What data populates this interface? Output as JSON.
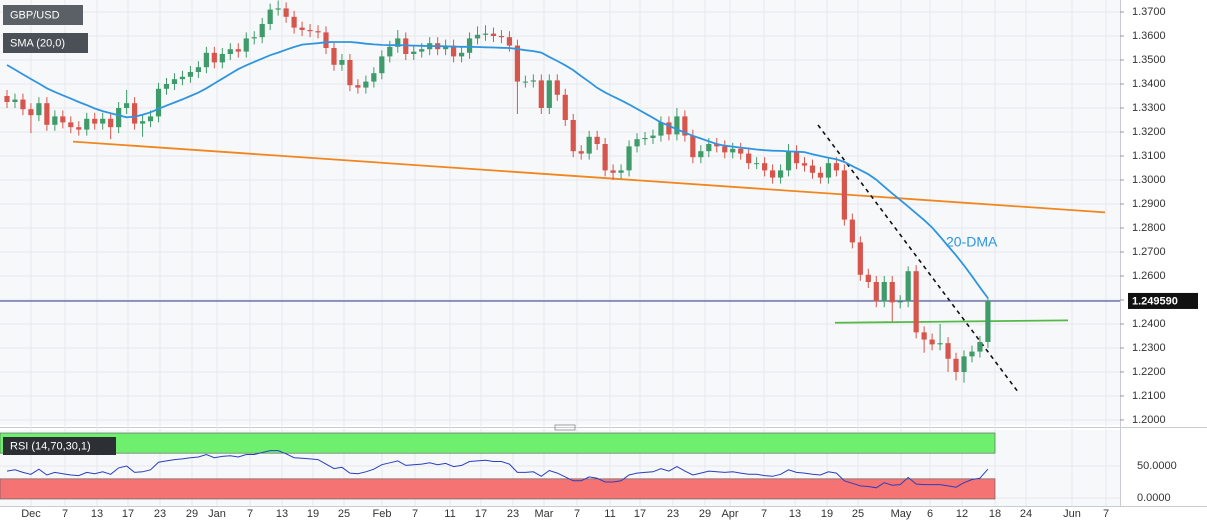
{
  "chart_data": {
    "type": "candlestick",
    "symbol": "GBP/USD",
    "up_color": "#3f9b6a",
    "down_color": "#d6554d",
    "open": [
      1.335,
      1.3325,
      1.3335,
      1.3295,
      1.327,
      1.332,
      1.323,
      1.3265,
      1.324,
      1.322,
      1.321,
      1.3255,
      1.3235,
      1.3255,
      1.322,
      1.33,
      1.332,
      1.3235,
      1.3245,
      1.3265,
      1.338,
      1.34,
      1.342,
      1.343,
      1.345,
      1.347,
      1.353,
      1.349,
      1.3525,
      1.3545,
      1.3535,
      1.359,
      1.3595,
      1.365,
      1.371,
      1.3715,
      1.368,
      1.3635,
      1.3625,
      1.362,
      1.3615,
      1.355,
      1.348,
      1.35,
      1.3395,
      1.3385,
      1.341,
      1.3445,
      1.3515,
      1.3555,
      1.359,
      1.3525,
      1.3535,
      1.3545,
      1.357,
      1.3545,
      1.356,
      1.3515,
      1.353,
      1.359,
      1.3605,
      1.361,
      1.36,
      1.3595,
      1.356,
      1.341,
      1.341,
      1.3415,
      1.33,
      1.3415,
      1.3355,
      1.325,
      1.312,
      1.311,
      1.318,
      1.315,
      1.304,
      1.303,
      1.304,
      1.314,
      1.317,
      1.3175,
      1.3185,
      1.324,
      1.319,
      1.3265,
      1.3185,
      1.3095,
      1.312,
      1.315,
      1.314,
      1.3115,
      1.313,
      1.311,
      1.307,
      1.307,
      1.304,
      1.301,
      1.304,
      1.312,
      1.307,
      1.306,
      1.303,
      1.301,
      1.307,
      1.304,
      1.2835,
      1.274,
      1.2605,
      1.2575,
      1.2495,
      1.2575,
      1.249,
      1.2495,
      1.262,
      1.2365,
      1.2335,
      1.2315,
      1.232,
      1.2255,
      1.22,
      1.2265,
      1.2285,
      1.2325
    ],
    "high": [
      1.3375,
      1.336,
      1.336,
      1.332,
      1.3345,
      1.3345,
      1.329,
      1.329,
      1.3265,
      1.3245,
      1.328,
      1.328,
      1.328,
      1.328,
      1.3325,
      1.3375,
      1.3345,
      1.327,
      1.329,
      1.3405,
      1.3425,
      1.3445,
      1.3455,
      1.3475,
      1.3495,
      1.3555,
      1.3555,
      1.355,
      1.357,
      1.357,
      1.3615,
      1.362,
      1.3675,
      1.3735,
      1.3748,
      1.374,
      1.3705,
      1.366,
      1.365,
      1.3645,
      1.364,
      1.3575,
      1.3525,
      1.3525,
      1.342,
      1.3435,
      1.347,
      1.354,
      1.358,
      1.3625,
      1.3615,
      1.356,
      1.357,
      1.3595,
      1.3595,
      1.3585,
      1.3585,
      1.3555,
      1.3615,
      1.364,
      1.3645,
      1.3635,
      1.3625,
      1.362,
      1.3585,
      1.3435,
      1.344,
      1.344,
      1.344,
      1.344,
      1.338,
      1.3275,
      1.3145,
      1.3205,
      1.3205,
      1.3175,
      1.3065,
      1.3065,
      1.3165,
      1.3195,
      1.32,
      1.321,
      1.3265,
      1.3265,
      1.33,
      1.329,
      1.321,
      1.3145,
      1.3175,
      1.3175,
      1.3165,
      1.3155,
      1.3155,
      1.3135,
      1.3095,
      1.3095,
      1.3065,
      1.3065,
      1.315,
      1.3145,
      1.3095,
      1.3085,
      1.3055,
      1.3095,
      1.3095,
      1.3065,
      1.286,
      1.2765,
      1.263,
      1.26,
      1.26,
      1.26,
      1.252,
      1.264,
      1.2645,
      1.239,
      1.236,
      1.24,
      1.2345,
      1.228,
      1.229,
      1.231,
      1.235,
      1.251
    ],
    "low": [
      1.33,
      1.33,
      1.327,
      1.3195,
      1.3245,
      1.3205,
      1.3205,
      1.3215,
      1.3195,
      1.3185,
      1.3185,
      1.321,
      1.321,
      1.317,
      1.3195,
      1.3275,
      1.321,
      1.318,
      1.322,
      1.324,
      1.3355,
      1.3375,
      1.3395,
      1.3405,
      1.3425,
      1.3445,
      1.3465,
      1.3465,
      1.35,
      1.351,
      1.351,
      1.3565,
      1.357,
      1.3625,
      1.3685,
      1.3655,
      1.361,
      1.36,
      1.3595,
      1.359,
      1.3525,
      1.3455,
      1.3455,
      1.337,
      1.336,
      1.336,
      1.3385,
      1.342,
      1.349,
      1.353,
      1.35,
      1.35,
      1.351,
      1.352,
      1.352,
      1.352,
      1.349,
      1.349,
      1.3505,
      1.3565,
      1.358,
      1.3575,
      1.357,
      1.3535,
      1.3275,
      1.3385,
      1.3385,
      1.3275,
      1.3275,
      1.333,
      1.3225,
      1.3095,
      1.3085,
      1.3085,
      1.3125,
      1.3015,
      1.3,
      1.3005,
      1.3015,
      1.3115,
      1.3145,
      1.315,
      1.316,
      1.3165,
      1.3165,
      1.316,
      1.307,
      1.307,
      1.3095,
      1.3115,
      1.309,
      1.309,
      1.3085,
      1.3045,
      1.3045,
      1.3015,
      1.2985,
      1.2985,
      1.3015,
      1.3045,
      1.3035,
      1.3005,
      1.2985,
      1.2985,
      1.3015,
      1.281,
      1.2715,
      1.258,
      1.255,
      1.247,
      1.247,
      1.241,
      1.2465,
      1.247,
      1.234,
      1.228,
      1.229,
      1.229,
      1.22,
      1.2165,
      1.2155,
      1.224,
      1.226,
      1.23
    ],
    "close": [
      1.3325,
      1.3335,
      1.3295,
      1.327,
      1.332,
      1.323,
      1.3265,
      1.324,
      1.322,
      1.321,
      1.3255,
      1.3235,
      1.3255,
      1.322,
      1.33,
      1.332,
      1.3235,
      1.3245,
      1.3265,
      1.338,
      1.34,
      1.342,
      1.343,
      1.345,
      1.347,
      1.353,
      1.349,
      1.3525,
      1.3545,
      1.3535,
      1.359,
      1.3595,
      1.365,
      1.371,
      1.3715,
      1.368,
      1.3635,
      1.3625,
      1.362,
      1.3615,
      1.355,
      1.348,
      1.35,
      1.3395,
      1.3385,
      1.341,
      1.3445,
      1.3515,
      1.3555,
      1.359,
      1.3525,
      1.3535,
      1.3545,
      1.357,
      1.3545,
      1.356,
      1.3515,
      1.353,
      1.359,
      1.3605,
      1.361,
      1.36,
      1.3595,
      1.356,
      1.341,
      1.341,
      1.3415,
      1.33,
      1.3415,
      1.3355,
      1.325,
      1.312,
      1.311,
      1.318,
      1.315,
      1.304,
      1.303,
      1.304,
      1.314,
      1.317,
      1.3175,
      1.3185,
      1.324,
      1.319,
      1.3265,
      1.3185,
      1.3095,
      1.312,
      1.315,
      1.314,
      1.3115,
      1.313,
      1.311,
      1.307,
      1.307,
      1.304,
      1.301,
      1.304,
      1.312,
      1.307,
      1.306,
      1.303,
      1.301,
      1.307,
      1.304,
      1.2835,
      1.274,
      1.2605,
      1.2575,
      1.2495,
      1.2575,
      1.249,
      1.2495,
      1.262,
      1.2365,
      1.2335,
      1.2315,
      1.232,
      1.2255,
      1.22,
      1.2265,
      1.2285,
      1.2325,
      1.24959
    ],
    "ylim": [
      1.1979,
      1.375
    ],
    "yticks": [
      {
        "value": 1.37,
        "label": "1.3700"
      },
      {
        "value": 1.36,
        "label": "1.3600"
      },
      {
        "value": 1.35,
        "label": "1.3500"
      },
      {
        "value": 1.34,
        "label": "1.3400"
      },
      {
        "value": 1.33,
        "label": "1.3300"
      },
      {
        "value": 1.32,
        "label": "1.3200"
      },
      {
        "value": 1.31,
        "label": "1.3100"
      },
      {
        "value": 1.3,
        "label": "1.3000"
      },
      {
        "value": 1.29,
        "label": "1.2900"
      },
      {
        "value": 1.28,
        "label": "1.2800"
      },
      {
        "value": 1.27,
        "label": "1.2700"
      },
      {
        "value": 1.26,
        "label": "1.2600"
      },
      {
        "value": 1.25,
        "label": "1.2500"
      },
      {
        "value": 1.24,
        "label": "1.2400"
      },
      {
        "value": 1.23,
        "label": "1.2300"
      },
      {
        "value": 1.22,
        "label": "1.2200"
      },
      {
        "value": 1.21,
        "label": "1.2100"
      },
      {
        "value": 1.2,
        "label": "1.2000"
      }
    ],
    "x_labels": [
      "Dec",
      "7",
      "13",
      "17",
      "23",
      "29",
      "Jan",
      "7",
      "13",
      "19",
      "25",
      "Feb",
      "7",
      "11",
      "17",
      "23",
      "Mar",
      "7",
      "11",
      "17",
      "23",
      "29",
      "Apr",
      "7",
      "13",
      "19",
      "25",
      "May",
      "6",
      "12",
      "18",
      "24",
      "Jun",
      "7"
    ],
    "grid": true,
    "sma": {
      "name": "SMA (20,0)",
      "color": "#2f95e0",
      "values": [
        1.3479,
        1.346,
        1.344,
        1.3421,
        1.3402,
        1.3382,
        1.3367,
        1.3353,
        1.3339,
        1.3325,
        1.3312,
        1.3298,
        1.3287,
        1.3278,
        1.327,
        1.3261,
        1.3264,
        1.3272,
        1.3282,
        1.3296,
        1.331,
        1.3323,
        1.3336,
        1.335,
        1.3364,
        1.3382,
        1.3402,
        1.3422,
        1.3442,
        1.3462,
        1.3478,
        1.3492,
        1.3506,
        1.352,
        1.3531,
        1.3543,
        1.3554,
        1.3564,
        1.3567,
        1.357,
        1.3574,
        1.3575,
        1.3575,
        1.3575,
        1.3572,
        1.3568,
        1.3565,
        1.3563,
        1.3562,
        1.3562,
        1.3561,
        1.356,
        1.3559,
        1.3558,
        1.3558,
        1.3557,
        1.3556,
        1.3555,
        1.3555,
        1.3554,
        1.3553,
        1.3552,
        1.3551,
        1.355,
        1.3546,
        1.3541,
        1.3537,
        1.3531,
        1.3513,
        1.3496,
        1.3478,
        1.3458,
        1.3433,
        1.3409,
        1.3384,
        1.3365,
        1.3348,
        1.3332,
        1.3315,
        1.3296,
        1.3278,
        1.3259,
        1.324,
        1.3226,
        1.3211,
        1.3197,
        1.3184,
        1.3173,
        1.3161,
        1.315,
        1.3143,
        1.3139,
        1.3135,
        1.3131,
        1.3127,
        1.3124,
        1.3122,
        1.3121,
        1.3119,
        1.3118,
        1.3116,
        1.3107,
        1.31,
        1.3093,
        1.3086,
        1.3075,
        1.3058,
        1.3041,
        1.3024,
        1.3001,
        1.2972,
        1.2944,
        1.2917,
        1.2889,
        1.2861,
        1.2833,
        1.2802,
        1.2764,
        1.2725,
        1.2686,
        1.2644,
        1.2599,
        1.2553,
        1.2508
      ]
    },
    "annotation": "20-DMA",
    "trendlines": [
      {
        "color": "#f0861e",
        "values": [
          1.316,
          1.2865
        ]
      },
      {
        "color": "#55b848",
        "values": [
          1.2405,
          1.2415
        ]
      },
      {
        "color": "#111111",
        "dashed": true,
        "values": [
          1.3229,
          1.2117
        ]
      }
    ],
    "last_price": {
      "value": 1.24959,
      "label": "1.249590",
      "color": "#2b3a8c"
    },
    "rsi": {
      "name": "RSI (14,70,30,1)",
      "color": "#2a3fbd",
      "values": [
        42,
        44,
        40,
        37,
        45,
        36,
        40,
        38,
        36,
        35,
        40,
        38,
        41,
        37,
        47,
        50,
        40,
        41,
        44,
        56,
        58,
        60,
        61,
        63,
        64,
        68,
        63,
        65,
        66,
        64,
        68,
        68,
        71,
        74,
        74,
        69,
        63,
        62,
        61,
        60,
        53,
        46,
        48,
        39,
        38,
        41,
        45,
        52,
        55,
        58,
        51,
        52,
        53,
        55,
        52,
        54,
        49,
        51,
        57,
        58,
        59,
        57,
        57,
        53,
        40,
        40,
        41,
        34,
        43,
        39,
        33,
        27,
        27,
        33,
        31,
        25,
        25,
        27,
        36,
        39,
        40,
        41,
        46,
        42,
        49,
        42,
        36,
        39,
        42,
        41,
        40,
        41,
        39,
        37,
        37,
        35,
        34,
        37,
        44,
        40,
        39,
        37,
        36,
        41,
        39,
        27,
        23,
        19,
        18,
        16,
        24,
        20,
        21,
        32,
        22,
        21,
        21,
        21,
        19,
        17,
        24,
        29,
        31,
        45
      ],
      "ylim": [
        -3,
        103
      ],
      "yticks": [
        {
          "value": 50,
          "label": "50.0000"
        },
        {
          "value": 0,
          "label": "0.0000"
        }
      ],
      "overbought": 70,
      "oversold": 30,
      "overbought_color": "#6ef06e",
      "oversold_color": "#f57373"
    }
  }
}
